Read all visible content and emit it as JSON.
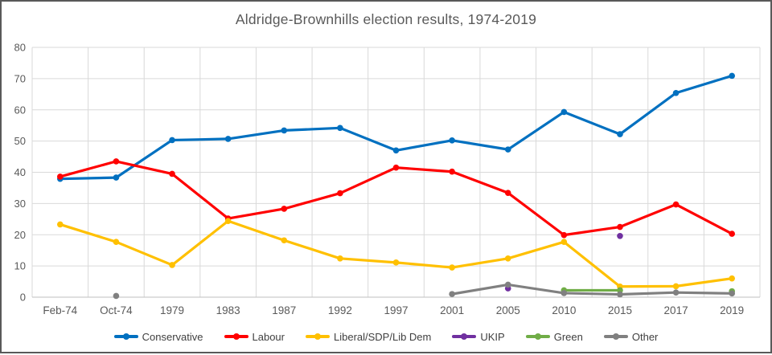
{
  "chart_data": {
    "type": "line",
    "title": "Aldridge-Brownhills election results, 1974-2019",
    "xlabel": "",
    "ylabel": "",
    "ylim": [
      0,
      80
    ],
    "ytick": 10,
    "grid": true,
    "legend_position": "bottom",
    "categories": [
      "Feb-74",
      "Oct-74",
      "1979",
      "1983",
      "1987",
      "1992",
      "1997",
      "2001",
      "2005",
      "2010",
      "2015",
      "2017",
      "2019"
    ],
    "series": [
      {
        "name": "Conservative",
        "color": "#0070C0",
        "values": [
          37.9,
          38.3,
          50.3,
          50.7,
          53.4,
          54.2,
          47.0,
          50.2,
          47.3,
          59.3,
          52.2,
          65.4,
          70.9
        ]
      },
      {
        "name": "Labour",
        "color": "#FF0000",
        "values": [
          38.6,
          43.5,
          39.5,
          25.2,
          28.3,
          33.3,
          41.5,
          40.2,
          33.4,
          19.9,
          22.5,
          29.7,
          20.3
        ]
      },
      {
        "name": "Liberal/SDP/Lib Dem",
        "color": "#FFC000",
        "values": [
          23.3,
          17.7,
          10.3,
          24.4,
          18.2,
          12.4,
          11.1,
          9.5,
          12.4,
          17.7,
          3.4,
          3.5,
          6.0
        ]
      },
      {
        "name": "UKIP",
        "color": "#7030A0",
        "values": [
          null,
          null,
          null,
          null,
          null,
          null,
          null,
          null,
          2.8,
          null,
          19.6,
          null,
          null
        ]
      },
      {
        "name": "Green",
        "color": "#70AD47",
        "values": [
          null,
          null,
          null,
          null,
          null,
          null,
          null,
          null,
          null,
          2.2,
          2.2,
          null,
          1.9
        ]
      },
      {
        "name": "Other",
        "color": "#808080",
        "values": [
          null,
          0.4,
          null,
          null,
          null,
          null,
          null,
          1.0,
          4.0,
          1.3,
          0.9,
          1.5,
          1.2
        ]
      }
    ],
    "colors": {
      "grid": "#D9D9D9",
      "axis": "#BFBFBF",
      "text": "#595959",
      "title": "#595959",
      "legend_text": "#404040",
      "frame_border": "#595959",
      "background": "#FFFFFF"
    }
  }
}
